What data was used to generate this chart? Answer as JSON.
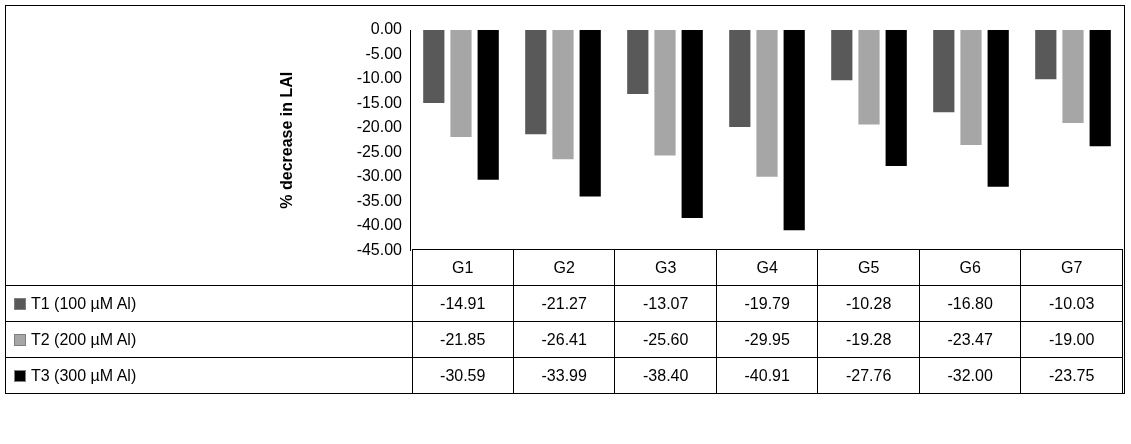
{
  "chart_data": {
    "type": "bar",
    "ylabel": "% decrease in LAI",
    "categories": [
      "G1",
      "G2",
      "G3",
      "G4",
      "G5",
      "G6",
      "G7"
    ],
    "series": [
      {
        "name": "T1 (100 µM Al)",
        "color": "#595959",
        "values": [
          -14.91,
          -21.27,
          -13.07,
          -19.79,
          -10.28,
          -16.8,
          -10.03
        ],
        "value_labels": [
          "-14.91",
          "-21.27",
          "-13.07",
          "-19.79",
          "-10.28",
          "-16.80",
          "-10.03"
        ]
      },
      {
        "name": "T2 (200 µM Al)",
        "color": "#a6a6a6",
        "values": [
          -21.85,
          -26.41,
          -25.6,
          -29.95,
          -19.28,
          -23.47,
          -19
        ],
        "value_labels": [
          "-21.85",
          "-26.41",
          "-25.60",
          "-29.95",
          "-19.28",
          "-23.47",
          "-19.00"
        ]
      },
      {
        "name": "T3 (300 µM Al)",
        "color": "#000000",
        "values": [
          -30.59,
          -33.99,
          -38.4,
          -40.91,
          -27.76,
          -32,
          -23.75
        ],
        "value_labels": [
          "-30.59",
          "-33.99",
          "-38.40",
          "-40.91",
          "-27.76",
          "-32.00",
          "-23.75"
        ]
      }
    ],
    "ylim": [
      -45,
      0
    ],
    "yticks": [
      {
        "value": 0,
        "label": "0.00"
      },
      {
        "value": -5,
        "label": "-5.00"
      },
      {
        "value": -10,
        "label": "-10.00"
      },
      {
        "value": -15,
        "label": "-15.00"
      },
      {
        "value": -20,
        "label": "-20.00"
      },
      {
        "value": -25,
        "label": "-25.00"
      },
      {
        "value": -30,
        "label": "-30.00"
      },
      {
        "value": -35,
        "label": "-35.00"
      },
      {
        "value": -40,
        "label": "-40.00"
      },
      {
        "value": -45,
        "label": "-45.00"
      }
    ],
    "grid": false,
    "legend": "bottom"
  }
}
